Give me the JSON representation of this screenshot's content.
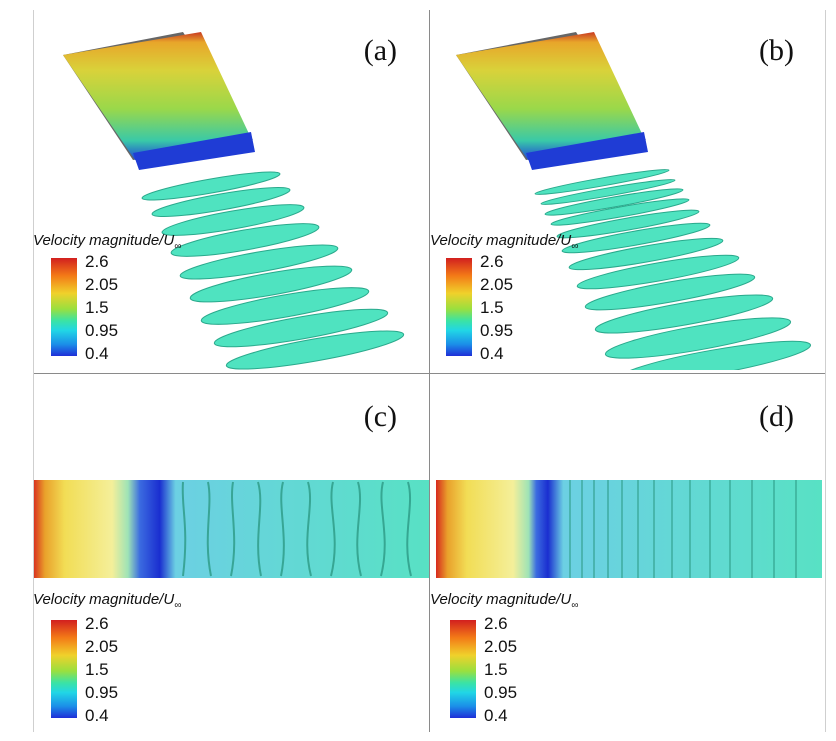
{
  "panels": [
    {
      "label": "(a)"
    },
    {
      "label": "(b)"
    },
    {
      "label": "(c)"
    },
    {
      "label": "(d)"
    }
  ],
  "legend": {
    "title_main": "Velocity magnitude/U",
    "title_sub": "∞",
    "ticks": [
      "2.6",
      "2.05",
      "1.5",
      "0.95",
      "0.4"
    ]
  },
  "colors": {
    "max": "#d21f1f",
    "mid": "#f0d12b",
    "low_mid": "#3be3a4",
    "min": "#1f2fd8"
  }
}
